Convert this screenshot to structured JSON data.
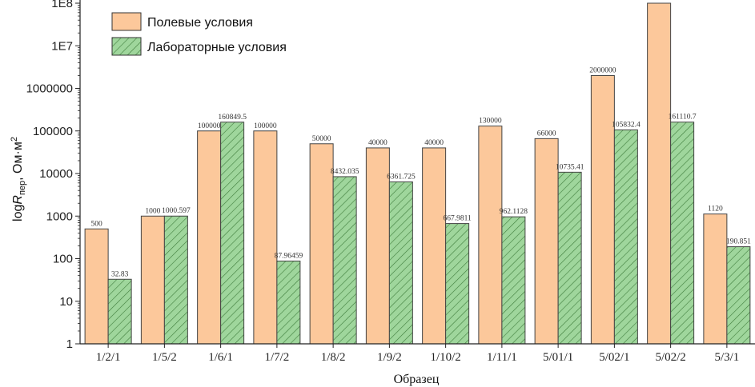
{
  "chart_data": {
    "type": "bar",
    "title": "",
    "xlabel": "Образец",
    "ylabel_parts": {
      "prefix": "log",
      "italic": "R",
      "subscript": "пер",
      "unit": ", Ом·м",
      "superscript": "2"
    },
    "yscale": "log",
    "ylim": [
      1,
      100000000
    ],
    "yticks": [
      "1",
      "10",
      "100",
      "1000",
      "10000",
      "100000",
      "1000000",
      "1E7",
      "1E8"
    ],
    "categories": [
      "1/2/1",
      "1/5/2",
      "1/6/1",
      "1/7/2",
      "1/8/2",
      "1/9/2",
      "1/10/2",
      "1/11/1",
      "5/01/1",
      "5/02/1",
      "5/02/2",
      "5/3/1"
    ],
    "series": [
      {
        "name": "Полевые условия",
        "color": "#fcc89b",
        "values": [
          500,
          1000,
          100000,
          100000,
          50000,
          40000,
          40000,
          130000,
          66000,
          2000000,
          200000000,
          1120
        ],
        "labels": [
          "500",
          "1000",
          "100000",
          "100000",
          "50000",
          "40000",
          "40000",
          "130000",
          "66000",
          "2000000",
          "",
          "1120"
        ]
      },
      {
        "name": "Лабораторные условия",
        "color": "#9fd69c",
        "hatch": true,
        "values": [
          32.83,
          1000.597,
          160849.5,
          87.96459,
          8432.035,
          6361.725,
          667.9811,
          962.1128,
          10735.41,
          105832.4,
          161110.7,
          190.851
        ],
        "labels": [
          "32.83",
          "1000.597",
          "160849.5",
          "87.96459",
          "8432.035",
          "6361.725",
          "667.9811",
          "962.1128",
          "10735.41",
          "105832.4",
          "161110.7",
          "190.851"
        ]
      }
    ],
    "legend_position": "top-left",
    "grid": false
  }
}
